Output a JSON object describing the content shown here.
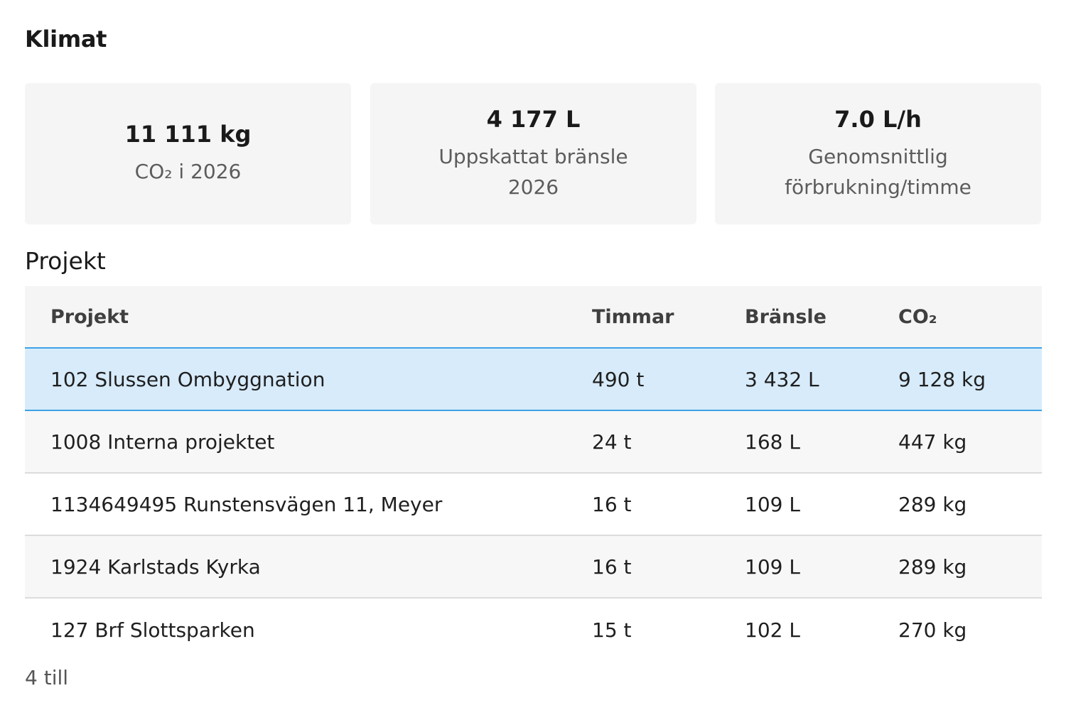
{
  "klimat": {
    "title": "Klimat",
    "cards": [
      {
        "value": "11 111 kg",
        "label": "CO₂ i 2026"
      },
      {
        "value": "4 177 L",
        "label": "Uppskattat bränsle 2026"
      },
      {
        "value": "7.0 L/h",
        "label": "Genomsnittlig förbrukning/timme"
      }
    ]
  },
  "projekt": {
    "title": "Projekt",
    "columns": [
      "Projekt",
      "Timmar",
      "Bränsle",
      "CO₂"
    ],
    "rows": [
      {
        "name": "102 Slussen Ombyggnation",
        "hours": "490 t",
        "fuel": "3 432 L",
        "co2": "9 128 kg"
      },
      {
        "name": "1008 Interna projektet",
        "hours": "24 t",
        "fuel": "168 L",
        "co2": "447 kg"
      },
      {
        "name": "1134649495 Runstensvägen 11, Meyer",
        "hours": "16 t",
        "fuel": "109 L",
        "co2": "289 kg"
      },
      {
        "name": "1924 Karlstads Kyrka",
        "hours": "16 t",
        "fuel": "109 L",
        "co2": "289 kg"
      },
      {
        "name": "127 Brf Slottsparken",
        "hours": "15 t",
        "fuel": "102 L",
        "co2": "270 kg"
      }
    ],
    "more_link": "4 till"
  }
}
